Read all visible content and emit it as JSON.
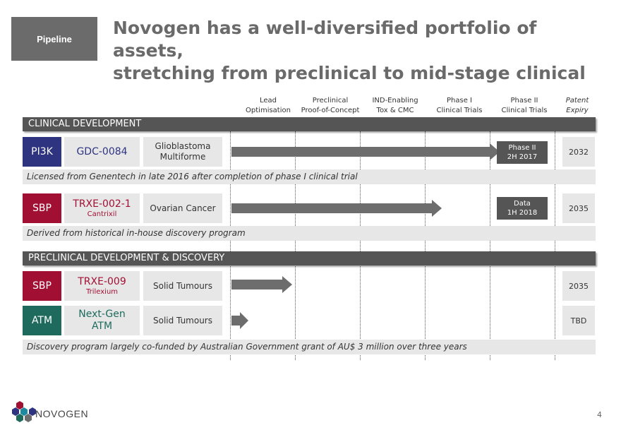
{
  "section_tag": "Pipeline",
  "title_line1": "Novogen has a well-diversified portfolio of assets,",
  "title_line2": "stretching from preclinical to mid-stage clinical",
  "columns": [
    {
      "line1": "Lead",
      "line2": "Optimisation"
    },
    {
      "line1": "Preclinical",
      "line2": "Proof-of-Concept"
    },
    {
      "line1": "IND-Enabling",
      "line2": "Tox & CMC"
    },
    {
      "line1": "Phase I",
      "line2": "Clinical Trials"
    },
    {
      "line1": "Phase II",
      "line2": "Clinical Trials"
    },
    {
      "line1": "Patent",
      "line2": "Expiry"
    }
  ],
  "clinical_header": "CLINICAL DEVELOPMENT",
  "preclinical_header": "PRECLINICAL DEVELOPMENT  & DISCOVERY",
  "colors": {
    "navy": "#2e3480",
    "crimson": "#a11033",
    "teal": "#1e6b5e"
  },
  "programs": [
    {
      "target": "PI3K",
      "drug": "GDC-0084",
      "drug_sub": "",
      "indication_line1": "Glioblastoma",
      "indication_line2": "Multiforme",
      "milestone_line1": "Phase II",
      "milestone_line2": "2H 2017",
      "patent": "2032"
    },
    {
      "target": "SBP",
      "drug": "TRXE-002-1",
      "drug_sub": "Cantrixil",
      "indication_line1": "Ovarian Cancer",
      "indication_line2": "",
      "milestone_line1": "Data",
      "milestone_line2": "1H 2018",
      "patent": "2035"
    },
    {
      "target": "SBP",
      "drug": "TRXE-009",
      "drug_sub": "Trilexium",
      "indication_line1": "Solid Tumours",
      "indication_line2": "",
      "patent": "2035"
    },
    {
      "target": "ATM",
      "drug": "Next-Gen",
      "drug_sub": "ATM",
      "indication_line1": "Solid Tumours",
      "indication_line2": "",
      "patent": "TBD"
    }
  ],
  "notes": [
    "Licensed from Genentech in late 2016 after completion of phase I clinical trial",
    "Derived from historical in-house discovery program",
    "Discovery program largely co-funded by Australian Government grant of AU$ 3 million over three years"
  ],
  "logo_text": "NOVOGEN",
  "page_number": "4"
}
